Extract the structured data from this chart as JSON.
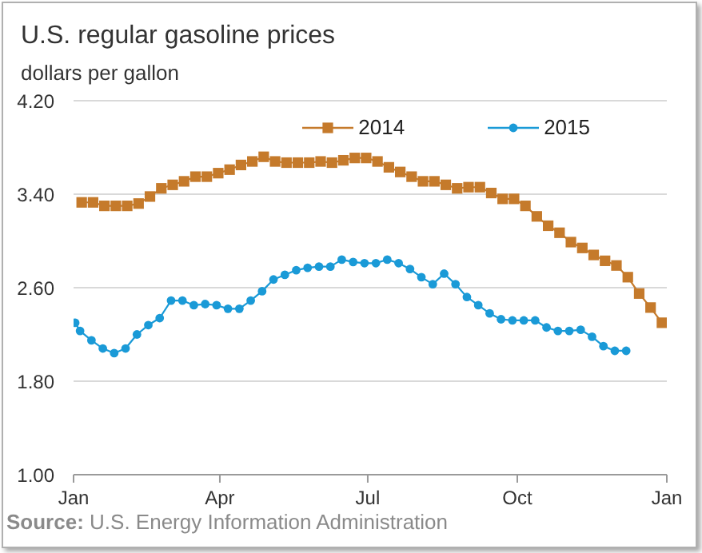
{
  "chart_data": {
    "type": "line",
    "title": "U.S. regular gasoline prices",
    "ylabel": "dollars per gallon",
    "annotations": [
      "Source: U.S. Energy Information Administration"
    ],
    "xlim": [
      "2014-01-01",
      "2015-01-01"
    ],
    "xticks": [
      {
        "value": "2014-01-01",
        "label": "Jan"
      },
      {
        "value": "2014-04-01",
        "label": "Apr"
      },
      {
        "value": "2014-07-01",
        "label": "Jul"
      },
      {
        "value": "2014-10-01",
        "label": "Oct"
      },
      {
        "value": "2015-01-01",
        "label": "Jan"
      }
    ],
    "ylim": [
      1,
      4.2
    ],
    "yticks": [
      {
        "value": 1,
        "label": "1.00"
      },
      {
        "value": 1.8,
        "label": "1.80"
      },
      {
        "value": 2.6,
        "label": "2.60"
      },
      {
        "value": 3.4,
        "label": "3.40"
      },
      {
        "value": 4.2,
        "label": "4.20"
      }
    ],
    "grid": "y",
    "legend": "top right",
    "series": [
      {
        "name": "2014",
        "color": "#c57a2b",
        "marker": "square",
        "x": [
          "2014-01-06",
          "2014-01-13",
          "2014-01-20",
          "2014-01-27",
          "2014-02-03",
          "2014-02-10",
          "2014-02-17",
          "2014-02-24",
          "2014-03-03",
          "2014-03-10",
          "2014-03-17",
          "2014-03-24",
          "2014-03-31",
          "2014-04-07",
          "2014-04-14",
          "2014-04-21",
          "2014-04-28",
          "2014-05-05",
          "2014-05-12",
          "2014-05-19",
          "2014-05-26",
          "2014-06-02",
          "2014-06-09",
          "2014-06-16",
          "2014-06-23",
          "2014-06-30",
          "2014-07-07",
          "2014-07-14",
          "2014-07-21",
          "2014-07-28",
          "2014-08-04",
          "2014-08-11",
          "2014-08-18",
          "2014-08-25",
          "2014-09-01",
          "2014-09-08",
          "2014-09-15",
          "2014-09-22",
          "2014-09-29",
          "2014-10-06",
          "2014-10-13",
          "2014-10-20",
          "2014-10-27",
          "2014-11-03",
          "2014-11-10",
          "2014-11-17",
          "2014-11-24",
          "2014-12-01",
          "2014-12-08",
          "2014-12-15",
          "2014-12-22",
          "2014-12-29"
        ],
        "values": [
          3.33,
          3.33,
          3.3,
          3.3,
          3.3,
          3.32,
          3.38,
          3.45,
          3.48,
          3.51,
          3.55,
          3.55,
          3.58,
          3.61,
          3.65,
          3.68,
          3.72,
          3.68,
          3.67,
          3.67,
          3.67,
          3.68,
          3.67,
          3.69,
          3.71,
          3.71,
          3.68,
          3.63,
          3.59,
          3.55,
          3.51,
          3.51,
          3.48,
          3.45,
          3.46,
          3.46,
          3.41,
          3.36,
          3.36,
          3.3,
          3.21,
          3.13,
          3.07,
          2.99,
          2.94,
          2.88,
          2.83,
          2.79,
          2.69,
          2.55,
          2.43,
          2.3
        ]
      },
      {
        "name": "2015",
        "color": "#1a9ad7",
        "marker": "circle",
        "x": [
          "2014-01-02",
          "2014-01-05",
          "2014-01-12",
          "2014-01-19",
          "2014-01-26",
          "2014-02-02",
          "2014-02-09",
          "2014-02-16",
          "2014-02-23",
          "2014-03-02",
          "2014-03-09",
          "2014-03-16",
          "2014-03-23",
          "2014-03-30",
          "2014-04-06",
          "2014-04-13",
          "2014-04-20",
          "2014-04-27",
          "2014-05-04",
          "2014-05-11",
          "2014-05-18",
          "2014-05-25",
          "2014-06-01",
          "2014-06-08",
          "2014-06-15",
          "2014-06-22",
          "2014-06-29",
          "2014-07-06",
          "2014-07-13",
          "2014-07-20",
          "2014-07-27",
          "2014-08-03",
          "2014-08-10",
          "2014-08-17",
          "2014-08-24",
          "2014-08-31",
          "2014-09-07",
          "2014-09-14",
          "2014-09-21",
          "2014-09-28",
          "2014-10-05",
          "2014-10-12",
          "2014-10-19",
          "2014-10-26",
          "2014-11-02",
          "2014-11-09",
          "2014-11-16",
          "2014-11-23",
          "2014-11-30",
          "2014-12-07"
        ],
        "values": [
          2.3,
          2.23,
          2.15,
          2.08,
          2.04,
          2.08,
          2.2,
          2.28,
          2.34,
          2.49,
          2.49,
          2.45,
          2.46,
          2.45,
          2.42,
          2.42,
          2.49,
          2.57,
          2.67,
          2.71,
          2.75,
          2.77,
          2.78,
          2.78,
          2.84,
          2.82,
          2.81,
          2.81,
          2.84,
          2.81,
          2.76,
          2.69,
          2.63,
          2.72,
          2.63,
          2.52,
          2.45,
          2.38,
          2.33,
          2.32,
          2.32,
          2.32,
          2.26,
          2.23,
          2.23,
          2.24,
          2.18,
          2.1,
          2.06,
          2.06
        ]
      }
    ]
  }
}
